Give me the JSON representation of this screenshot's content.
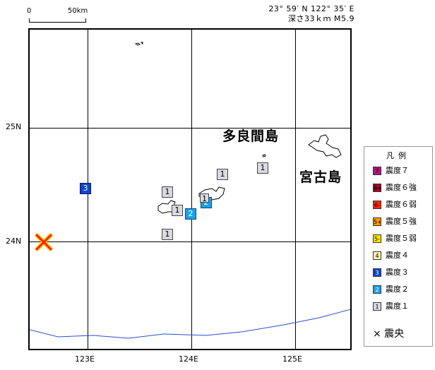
{
  "scale": {
    "zero": "0",
    "fifty": "50km"
  },
  "header": {
    "coords": "23° 59′ N  122° 35′ E",
    "depth_mag": "深さ33ｋｍ  M5.9"
  },
  "axes": {
    "lon": [
      "123E",
      "124E",
      "125E"
    ],
    "lat": [
      "25N",
      "24N"
    ]
  },
  "places": {
    "tarama": "多良間島",
    "miyako": "宮古島"
  },
  "markers": [
    "3",
    "1",
    "1",
    "1",
    "1",
    "2",
    "2",
    "1",
    "1"
  ],
  "legend": {
    "title": "凡例",
    "items": [
      {
        "badge": "7",
        "label": "震度７",
        "color": "#b0127f"
      },
      {
        "badge": "6+",
        "label": "震度６強",
        "color": "#a50021"
      },
      {
        "badge": "6-",
        "label": "震度６弱",
        "color": "#ff2800"
      },
      {
        "badge": "5+",
        "label": "震度５強",
        "color": "#ff9900"
      },
      {
        "badge": "5-",
        "label": "震度５弱",
        "color": "#ffe600"
      },
      {
        "badge": "4",
        "label": "震度４",
        "color": "#fff5b0"
      },
      {
        "badge": "3",
        "label": "震度３",
        "color": "#1144cc"
      },
      {
        "badge": "2",
        "label": "震度２",
        "color": "#19a3e6"
      },
      {
        "badge": "1",
        "label": "震度１",
        "color": "#d9d9e0"
      }
    ],
    "epicenter": "× 震央"
  }
}
